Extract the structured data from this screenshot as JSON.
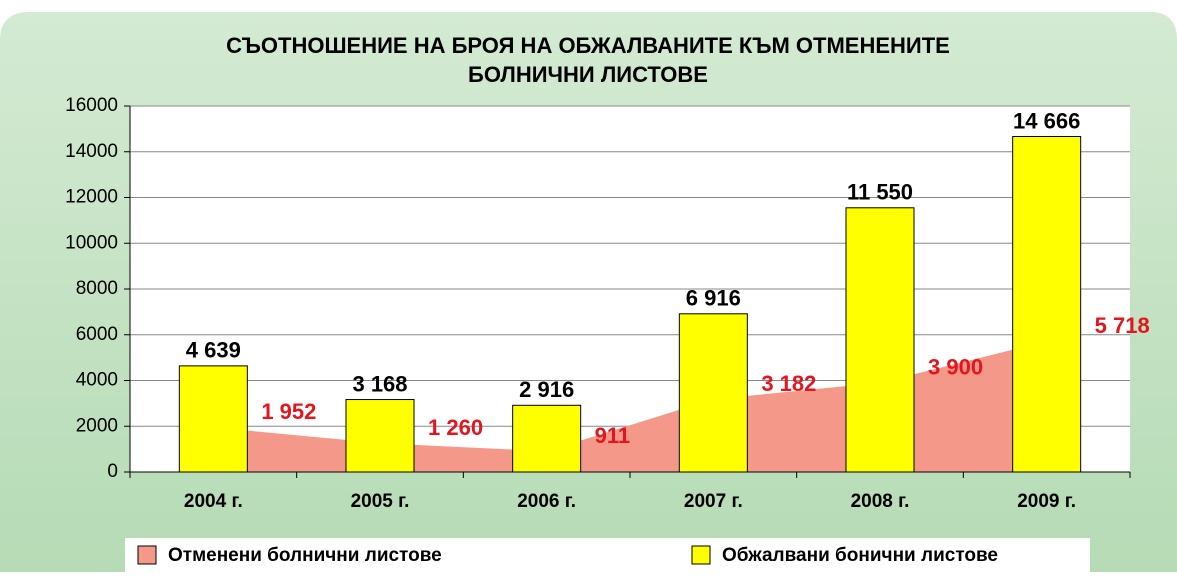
{
  "chart_data": {
    "type": "bar",
    "title": [
      "СЪОТНОШЕНИЕ НА БРОЯ НА ОБЖАЛВАНИТЕ КЪМ ОТМЕНЕНИТЕ",
      "БОЛНИЧНИ ЛИСТОВЕ"
    ],
    "categories": [
      "2004 г.",
      "2005 г.",
      "2006 г.",
      "2007 г.",
      "2008 г.",
      "2009 г."
    ],
    "series": [
      {
        "name": "Отменени болнични листове",
        "type": "area",
        "color": "#f4998a",
        "values": [
          1952,
          1260,
          911,
          3182,
          3900,
          5718
        ],
        "value_labels": [
          "1 952",
          "1 260",
          "911",
          "3 182",
          "3 900",
          "5 718"
        ]
      },
      {
        "name": "Обжалвани бонични листове",
        "type": "bar",
        "color": "#ffff00",
        "values": [
          4639,
          3168,
          2916,
          6916,
          11550,
          14666
        ],
        "value_labels": [
          "4 639",
          "3 168",
          "2 916",
          "6 916",
          "11 550",
          "14 666"
        ]
      }
    ],
    "ylim": [
      0,
      16000
    ],
    "yticks": [
      0,
      2000,
      4000,
      6000,
      8000,
      10000,
      12000,
      14000,
      16000
    ],
    "grid": true
  }
}
